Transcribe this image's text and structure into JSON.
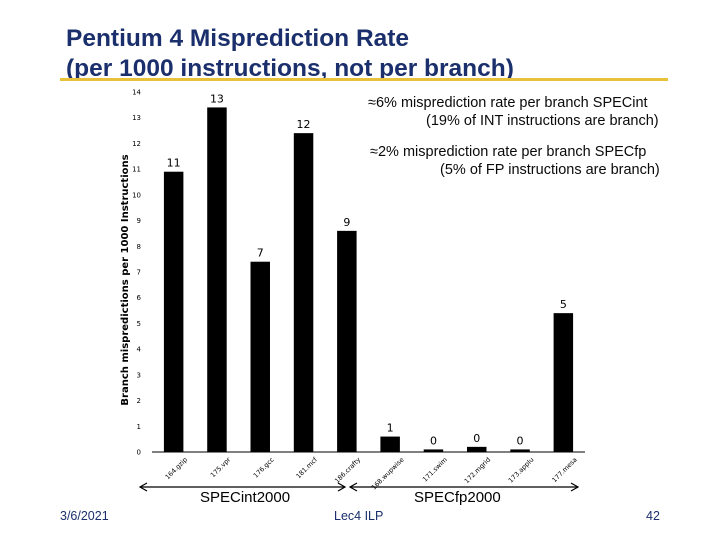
{
  "slide": {
    "title_line1": "Pentium 4 Misprediction Rate",
    "title_line2": "(per 1000 instructions, not per branch)",
    "notes": [
      {
        "bullet": "≈",
        "line1": "6% misprediction rate per branch SPECint",
        "line2": "(19% of INT instructions are branch)"
      },
      {
        "bullet": "≈",
        "line1": "2% misprediction rate per branch SPECfp",
        "line2": "(5% of FP instructions are branch)"
      }
    ],
    "group_labels": [
      "SPECint2000",
      "SPECfp2000"
    ],
    "footer": {
      "date": "3/6/2021",
      "center": "Lec4 ILP",
      "page": "42"
    },
    "colors": {
      "title": "#1a2f6b",
      "rule": "#e8c13a",
      "bar": "#000000"
    }
  },
  "chart_data": {
    "type": "bar",
    "ylabel": "Branch mispredictions per 1000 Instructions",
    "ylim": [
      0,
      14
    ],
    "yticks": [
      0,
      1,
      2,
      3,
      4,
      5,
      6,
      7,
      8,
      9,
      10,
      11,
      12,
      13,
      14
    ],
    "categories": [
      "164.gzip",
      "175.vpr",
      "176.gcc",
      "181.mcf",
      "186.crafty",
      "168.wupwise",
      "171.swim",
      "172.mgrid",
      "173.applu",
      "177.mesa"
    ],
    "values": [
      10.9,
      13.4,
      7.4,
      12.4,
      8.6,
      0.6,
      0.1,
      0.2,
      0.1,
      5.4
    ],
    "data_labels": [
      "11",
      "13",
      "7",
      "12",
      "9",
      "1",
      "0",
      "0",
      "0",
      "5"
    ],
    "grid": false
  }
}
